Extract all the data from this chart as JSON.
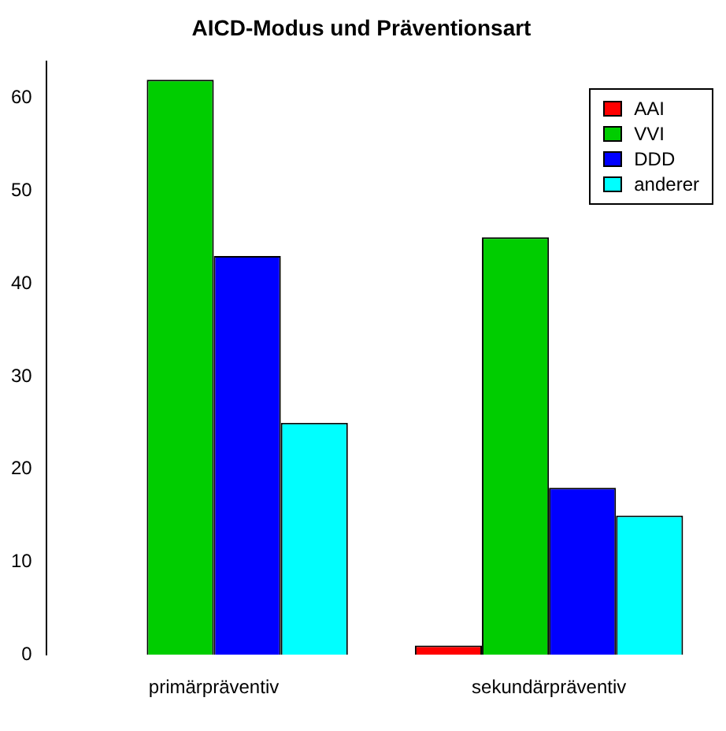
{
  "chart_data": {
    "type": "bar",
    "title": "AICD-Modus und Präventionsart",
    "categories": [
      "primärpräventiv",
      "sekundärpräventiv"
    ],
    "series": [
      {
        "name": "AAI",
        "color": "#ff0000",
        "values": [
          0,
          1
        ]
      },
      {
        "name": "VVI",
        "color": "#00cd00",
        "values": [
          62,
          45
        ]
      },
      {
        "name": "DDD",
        "color": "#0000ff",
        "values": [
          43,
          18
        ]
      },
      {
        "name": "anderer",
        "color": "#00ffff",
        "values": [
          25,
          15
        ]
      }
    ],
    "ylim": [
      0,
      64
    ],
    "yticks": [
      0,
      10,
      20,
      30,
      40,
      50,
      60
    ],
    "grid": false,
    "legend": "top right"
  }
}
